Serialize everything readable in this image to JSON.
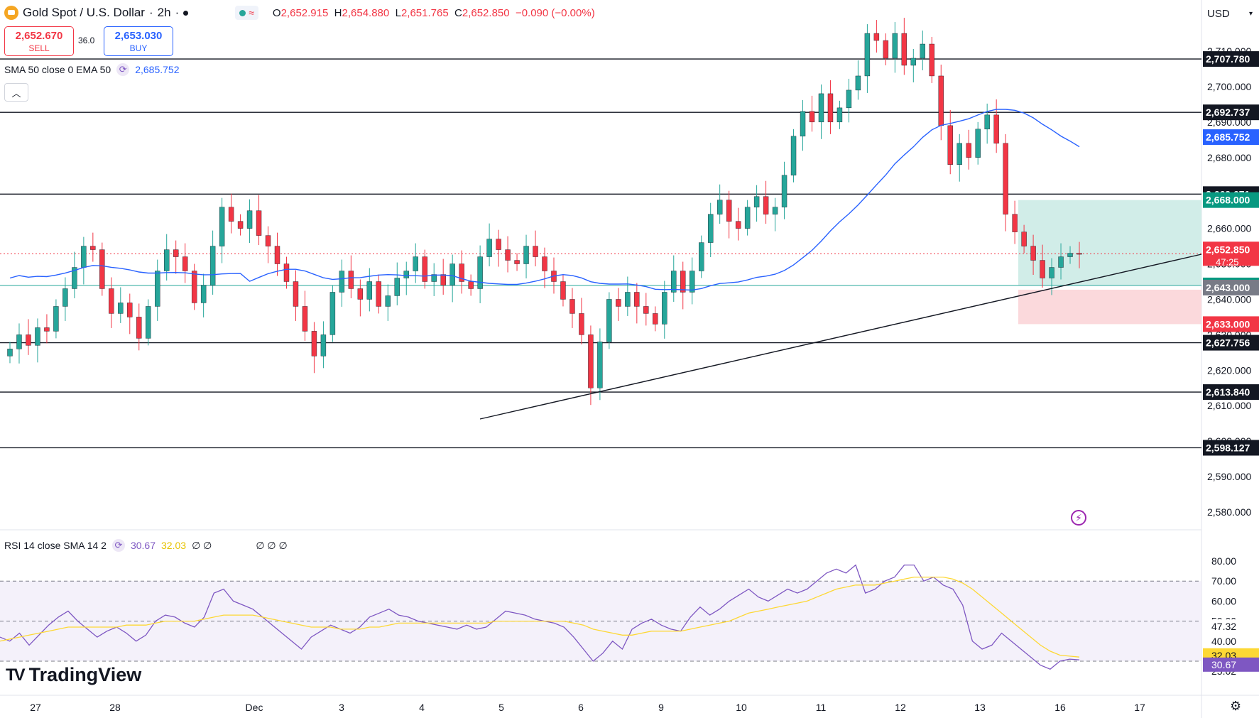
{
  "header": {
    "title": "Gold Spot / U.S. Dollar",
    "interval": "2h",
    "status_icon": "wave-icon",
    "ohlc": {
      "o_label": "O",
      "o": "2,652.915",
      "h_label": "H",
      "h": "2,654.880",
      "l_label": "L",
      "l": "2,651.765",
      "c_label": "C",
      "c": "2,652.850",
      "change": "−0.090 (−0.00%)"
    }
  },
  "trade": {
    "sell_price": "2,652.670",
    "sell_label": "SELL",
    "spread": "36.0",
    "buy_price": "2,653.030",
    "buy_label": "BUY"
  },
  "indicators": {
    "sma": {
      "label": "SMA 50 close 0 EMA 50",
      "value": "2,685.752"
    },
    "rsi": {
      "label": "RSI 14 close SMA 14 2",
      "value": "30.67",
      "sma_value": "32.03",
      "extras": "∅ ∅",
      "extras2": "∅ ∅ ∅"
    }
  },
  "currency": "USD",
  "branding": "TradingView",
  "colors": {
    "up": "#26a69a",
    "down": "#f23645",
    "sma": "#2962ff",
    "rsi": "#7e57c2",
    "rsi_sma": "#fdd835",
    "tp_zone": "#d1ede8",
    "sl_zone": "#fbd9dc"
  },
  "chart_data": {
    "type": "candlestick",
    "symbol": "Gold Spot / U.S. Dollar",
    "timeframe": "2h",
    "y_axis_labels": [
      "2,710.000",
      "2,700.000",
      "2,690.000",
      "2,680.000",
      "2,670.000",
      "2,660.000",
      "2,650.000",
      "2,640.000",
      "2,630.000",
      "2,620.000",
      "2,610.000",
      "2,600.000",
      "2,590.000",
      "2,580.000"
    ],
    "x_axis_labels": [
      "27",
      "28",
      "Dec",
      "3",
      "4",
      "5",
      "6",
      "9",
      "10",
      "11",
      "12",
      "13",
      "16",
      "17"
    ],
    "horizontal_levels": [
      {
        "value": 2707.78,
        "label": "2,707.780",
        "kind": "line"
      },
      {
        "value": 2692.737,
        "label": "2,692.737",
        "kind": "line"
      },
      {
        "value": 2669.671,
        "label": "2,669.671",
        "kind": "line"
      },
      {
        "value": 2627.756,
        "label": "2,627.756",
        "kind": "line"
      },
      {
        "value": 2613.84,
        "label": "2,613.840",
        "kind": "line"
      },
      {
        "value": 2598.127,
        "label": "2,598.127",
        "kind": "line"
      }
    ],
    "position": {
      "target": 2668.0,
      "target_label": "2,668.000",
      "entry": 2643.917,
      "entry_label": "2,643.917",
      "stop_edge": 2643.0,
      "stop_edge_label": "2,643.000",
      "stop": 2633.0,
      "stop_label": "2,633.000"
    },
    "sma_badge": {
      "value": 2685.752,
      "label": "2,685.752"
    },
    "last_price": {
      "value": 2652.85,
      "label": "2,652.850",
      "countdown": "47:25"
    },
    "trendline": {
      "from": {
        "x": "5",
        "y": 2605
      },
      "to": {
        "x": "17",
        "y": 2652
      }
    },
    "candles_close": [
      2626,
      2630,
      2627,
      2632,
      2631,
      2638,
      2643,
      2649,
      2655,
      2654,
      2643,
      2636,
      2639,
      2635,
      2629,
      2638,
      2648,
      2654,
      2652,
      2648,
      2639,
      2644,
      2655,
      2666,
      2662,
      2660,
      2665,
      2658,
      2655,
      2650,
      2645,
      2638,
      2631,
      2624,
      2630,
      2642,
      2648,
      2643,
      2640,
      2645,
      2638,
      2641,
      2646,
      2648,
      2652,
      2645,
      2647,
      2644,
      2650,
      2645,
      2643,
      2652,
      2657,
      2654,
      2651,
      2650,
      2655,
      2652,
      2648,
      2645,
      2640,
      2636,
      2630,
      2615,
      2628,
      2640,
      2638,
      2642,
      2638,
      2636,
      2633,
      2642,
      2648,
      2642,
      2648,
      2656,
      2664,
      2668,
      2662,
      2660,
      2666,
      2669,
      2664,
      2666,
      2675,
      2686,
      2693,
      2690,
      2698,
      2690,
      2694,
      2699,
      2703,
      2715,
      2713,
      2708,
      2715,
      2706,
      2708,
      2712,
      2703,
      2689,
      2678,
      2684,
      2680,
      2688,
      2692,
      2684,
      2664,
      2659,
      2655,
      2651,
      2646,
      2649,
      2652,
      2653,
      2652.85
    ]
  },
  "rsi_data": {
    "y_axis_labels": [
      "80.00",
      "70.00",
      "60.00",
      "50.00",
      "40.00",
      "25.02"
    ],
    "badges": {
      "value": "47.32",
      "sma": "32.03",
      "rsi": "30.67"
    },
    "overbought": 70,
    "oversold": 30,
    "rsi": [
      42,
      40,
      44,
      38,
      43,
      48,
      52,
      55,
      50,
      46,
      42,
      45,
      47,
      44,
      40,
      43,
      50,
      53,
      52,
      49,
      47,
      52,
      64,
      66,
      60,
      58,
      56,
      52,
      48,
      44,
      40,
      36,
      42,
      45,
      48,
      46,
      44,
      47,
      52,
      54,
      56,
      53,
      52,
      50,
      49,
      48,
      47,
      46,
      48,
      46,
      47,
      51,
      55,
      54,
      53,
      51,
      50,
      49,
      47,
      42,
      36,
      30,
      34,
      40,
      36,
      46,
      49,
      51,
      48,
      46,
      45,
      52,
      57,
      53,
      56,
      60,
      63,
      66,
      62,
      60,
      63,
      66,
      64,
      66,
      70,
      74,
      76,
      74,
      78,
      64,
      66,
      70,
      72,
      78,
      78,
      70,
      72,
      68,
      66,
      58,
      40,
      36,
      38,
      44,
      40,
      36,
      32,
      28,
      26,
      30,
      31,
      30.67
    ],
    "rsi_sma": [
      40,
      41,
      42,
      43,
      44,
      45,
      46,
      47,
      47,
      47,
      47,
      47,
      47,
      48,
      48,
      48,
      49,
      50,
      50,
      50,
      50,
      51,
      52,
      53,
      53,
      53,
      53,
      52,
      51,
      50,
      49,
      48,
      47,
      47,
      47,
      46,
      46,
      46,
      47,
      47,
      48,
      49,
      49,
      49,
      49,
      49,
      49,
      49,
      49,
      49,
      49,
      50,
      50,
      50,
      50,
      50,
      50,
      50,
      50,
      49,
      48,
      46,
      45,
      44,
      43,
      43,
      44,
      45,
      45,
      45,
      45,
      46,
      47,
      48,
      49,
      50,
      52,
      54,
      55,
      56,
      57,
      58,
      59,
      60,
      62,
      64,
      66,
      67,
      68,
      68,
      68,
      69,
      70,
      71,
      72,
      72,
      72,
      72,
      71,
      69,
      66,
      62,
      58,
      54,
      50,
      46,
      42,
      38,
      35,
      33,
      32.5,
      32.03
    ]
  }
}
